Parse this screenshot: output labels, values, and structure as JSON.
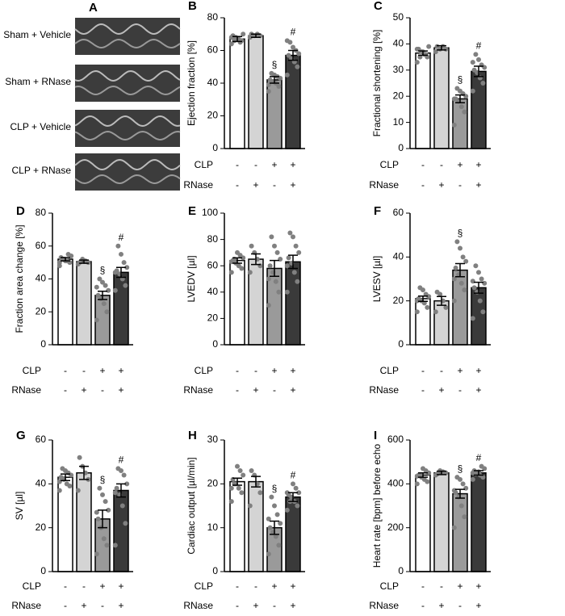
{
  "panel_a": {
    "label": "A",
    "rows": [
      "Sham + Vehicle",
      "Sham + RNase",
      "CLP + Vehicle",
      "CLP + RNase"
    ]
  },
  "chart_data": [
    {
      "type": "bar",
      "panel": "B",
      "ylabel": "Ejection fraction [%]",
      "colors": [
        "#ffffff",
        "#d4d4d4",
        "#9a9a9a",
        "#3a3a3a"
      ],
      "point_color": "#808080",
      "values": [
        67,
        69,
        42,
        57
      ],
      "errors": [
        1.5,
        1,
        2,
        3
      ],
      "annotations": [
        null,
        null,
        "§",
        "#"
      ],
      "points": [
        [
          64,
          66,
          67,
          68,
          69,
          70,
          65,
          67,
          66,
          68
        ],
        [
          68,
          69,
          70,
          69,
          70
        ],
        [
          35,
          38,
          40,
          41,
          42,
          43,
          44,
          45,
          46,
          39
        ],
        [
          45,
          50,
          53,
          55,
          57,
          58,
          60,
          62,
          65,
          66
        ]
      ],
      "ylim": [
        0,
        80
      ],
      "yticks": [
        0,
        20,
        40,
        60,
        80
      ],
      "conditions": [
        {
          "name": "CLP",
          "labels": [
            "-",
            "-",
            "+",
            "+"
          ]
        },
        {
          "name": "RNase",
          "labels": [
            "-",
            "+",
            "-",
            "+"
          ]
        }
      ]
    },
    {
      "type": "bar",
      "panel": "C",
      "ylabel": "Fractional shortening [%]",
      "colors": [
        "#ffffff",
        "#d4d4d4",
        "#9a9a9a",
        "#3a3a3a"
      ],
      "point_color": "#808080",
      "values": [
        36.5,
        38.5,
        19,
        29.5
      ],
      "errors": [
        0.8,
        0.8,
        1.5,
        2
      ],
      "annotations": [
        null,
        null,
        "§",
        "#"
      ],
      "points": [
        [
          33,
          35,
          36,
          37,
          38,
          39,
          36,
          37,
          35,
          38
        ],
        [
          37,
          38,
          39,
          38,
          39
        ],
        [
          9,
          14,
          16,
          18,
          19,
          20,
          21,
          22,
          23,
          19
        ],
        [
          22,
          25,
          27,
          29,
          30,
          31,
          32,
          34,
          36,
          33
        ]
      ],
      "ylim": [
        0,
        50
      ],
      "yticks": [
        0,
        10,
        20,
        30,
        40,
        50
      ],
      "conditions": [
        {
          "name": "CLP",
          "labels": [
            "-",
            "-",
            "+",
            "+"
          ]
        },
        {
          "name": "RNase",
          "labels": [
            "-",
            "+",
            "-",
            "+"
          ]
        }
      ]
    },
    {
      "type": "bar",
      "panel": "D",
      "ylabel": "Fraction area change [%]",
      "colors": [
        "#ffffff",
        "#d4d4d4",
        "#9a9a9a",
        "#3a3a3a"
      ],
      "point_color": "#808080",
      "values": [
        52,
        50.5,
        30,
        44
      ],
      "errors": [
        1,
        1,
        2.5,
        3
      ],
      "annotations": [
        null,
        null,
        "§",
        "#"
      ],
      "points": [
        [
          48,
          50,
          51,
          52,
          53,
          54,
          55,
          51,
          52,
          50
        ],
        [
          49,
          50,
          51,
          52,
          50
        ],
        [
          15,
          20,
          25,
          28,
          30,
          33,
          36,
          38,
          40,
          35
        ],
        [
          33,
          36,
          40,
          43,
          45,
          47,
          50,
          55,
          60,
          44
        ]
      ],
      "ylim": [
        0,
        80
      ],
      "yticks": [
        0,
        20,
        40,
        60,
        80
      ],
      "conditions": [
        {
          "name": "CLP",
          "labels": [
            "-",
            "-",
            "+",
            "+"
          ]
        },
        {
          "name": "RNase",
          "labels": [
            "-",
            "+",
            "-",
            "+"
          ]
        }
      ]
    },
    {
      "type": "bar",
      "panel": "E",
      "ylabel": "LVEDV [µl]",
      "colors": [
        "#ffffff",
        "#d4d4d4",
        "#9a9a9a",
        "#3a3a3a"
      ],
      "point_color": "#808080",
      "values": [
        64,
        65,
        58,
        63
      ],
      "errors": [
        2,
        4,
        6,
        5
      ],
      "annotations": [
        null,
        null,
        null,
        null
      ],
      "points": [
        [
          55,
          58,
          60,
          62,
          64,
          66,
          68,
          70,
          65,
          63
        ],
        [
          55,
          60,
          65,
          70,
          75
        ],
        [
          30,
          40,
          48,
          55,
          60,
          65,
          70,
          75,
          82,
          50
        ],
        [
          40,
          48,
          55,
          62,
          66,
          70,
          75,
          82,
          85,
          60
        ]
      ],
      "ylim": [
        0,
        100
      ],
      "yticks": [
        0,
        20,
        40,
        60,
        80,
        100
      ],
      "conditions": [
        {
          "name": "CLP",
          "labels": [
            "-",
            "-",
            "+",
            "+"
          ]
        },
        {
          "name": "RNase",
          "labels": [
            "-",
            "+",
            "-",
            "+"
          ]
        }
      ]
    },
    {
      "type": "bar",
      "panel": "F",
      "ylabel": "LVESV [µl]",
      "colors": [
        "#ffffff",
        "#d4d4d4",
        "#9a9a9a",
        "#3a3a3a"
      ],
      "point_color": "#808080",
      "values": [
        21,
        20,
        34,
        26
      ],
      "errors": [
        1.2,
        2,
        3,
        2.5
      ],
      "annotations": [
        null,
        null,
        "§",
        null
      ],
      "points": [
        [
          15,
          17,
          19,
          20,
          21,
          22,
          23,
          25,
          26,
          20
        ],
        [
          15,
          17,
          20,
          23,
          24
        ],
        [
          20,
          25,
          28,
          32,
          35,
          38,
          40,
          44,
          47,
          30
        ],
        [
          12,
          15,
          20,
          24,
          26,
          28,
          30,
          33,
          36,
          29
        ]
      ],
      "ylim": [
        0,
        60
      ],
      "yticks": [
        0,
        20,
        40,
        60
      ],
      "conditions": [
        {
          "name": "CLP",
          "labels": [
            "-",
            "-",
            "+",
            "+"
          ]
        },
        {
          "name": "RNase",
          "labels": [
            "-",
            "+",
            "-",
            "+"
          ]
        }
      ]
    },
    {
      "type": "bar",
      "panel": "G",
      "ylabel": "SV [µl]",
      "colors": [
        "#ffffff",
        "#d4d4d4",
        "#9a9a9a",
        "#3a3a3a"
      ],
      "point_color": "#808080",
      "values": [
        43,
        45,
        24,
        37
      ],
      "errors": [
        1.5,
        3,
        4,
        3
      ],
      "annotations": [
        null,
        null,
        "§",
        "#"
      ],
      "points": [
        [
          37,
          39,
          40,
          42,
          43,
          44,
          45,
          46,
          47,
          41
        ],
        [
          37,
          42,
          45,
          48,
          52
        ],
        [
          8,
          12,
          15,
          20,
          24,
          28,
          32,
          35,
          38,
          27
        ],
        [
          12,
          22,
          30,
          35,
          38,
          40,
          44,
          46,
          47,
          36
        ]
      ],
      "ylim": [
        0,
        60
      ],
      "yticks": [
        0,
        20,
        40,
        60
      ],
      "conditions": [
        {
          "name": "CLP",
          "labels": [
            "-",
            "-",
            "+",
            "+"
          ]
        },
        {
          "name": "RNase",
          "labels": [
            "-",
            "+",
            "-",
            "+"
          ]
        }
      ]
    },
    {
      "type": "bar",
      "panel": "H",
      "ylabel": "Cardiac output [µl/min]",
      "colors": [
        "#ffffff",
        "#d4d4d4",
        "#9a9a9a",
        "#3a3a3a"
      ],
      "point_color": "#808080",
      "values": [
        20.5,
        20.5,
        10,
        17
      ],
      "errors": [
        0.8,
        1.2,
        1.5,
        1
      ],
      "annotations": [
        null,
        null,
        "§",
        "#"
      ],
      "points": [
        [
          16,
          18,
          19,
          20,
          21,
          22,
          23,
          24,
          20,
          19
        ],
        [
          15,
          18,
          20,
          22,
          23
        ],
        [
          4,
          6,
          8,
          9,
          10,
          11,
          13,
          15,
          17,
          12
        ],
        [
          14,
          15,
          16,
          17,
          17.5,
          18,
          19,
          20,
          16,
          18
        ]
      ],
      "ylim": [
        0,
        30
      ],
      "yticks": [
        0,
        10,
        20,
        30
      ],
      "conditions": [
        {
          "name": "CLP",
          "labels": [
            "-",
            "-",
            "+",
            "+"
          ]
        },
        {
          "name": "RNase",
          "labels": [
            "-",
            "+",
            "-",
            "+"
          ]
        }
      ]
    },
    {
      "type": "bar",
      "panel": "I",
      "ylabel": "Heart rate [bpm] before echo",
      "colors": [
        "#ffffff",
        "#d4d4d4",
        "#9a9a9a",
        "#3a3a3a"
      ],
      "point_color": "#808080",
      "values": [
        440,
        450,
        355,
        450
      ],
      "errors": [
        10,
        8,
        20,
        10
      ],
      "annotations": [
        null,
        null,
        "§",
        "#"
      ],
      "points": [
        [
          400,
          410,
          420,
          430,
          440,
          450,
          460,
          470,
          440,
          435
        ],
        [
          440,
          450,
          455,
          460,
          445
        ],
        [
          200,
          250,
          300,
          340,
          360,
          380,
          400,
          420,
          430,
          370
        ],
        [
          420,
          430,
          440,
          450,
          460,
          470,
          480,
          455,
          445,
          450
        ]
      ],
      "ylim": [
        0,
        600
      ],
      "yticks": [
        0,
        200,
        400,
        600
      ],
      "conditions": [
        {
          "name": "CLP",
          "labels": [
            "-",
            "-",
            "+",
            "+"
          ]
        },
        {
          "name": "RNase",
          "labels": [
            "-",
            "+",
            "-",
            "+"
          ]
        }
      ]
    }
  ]
}
